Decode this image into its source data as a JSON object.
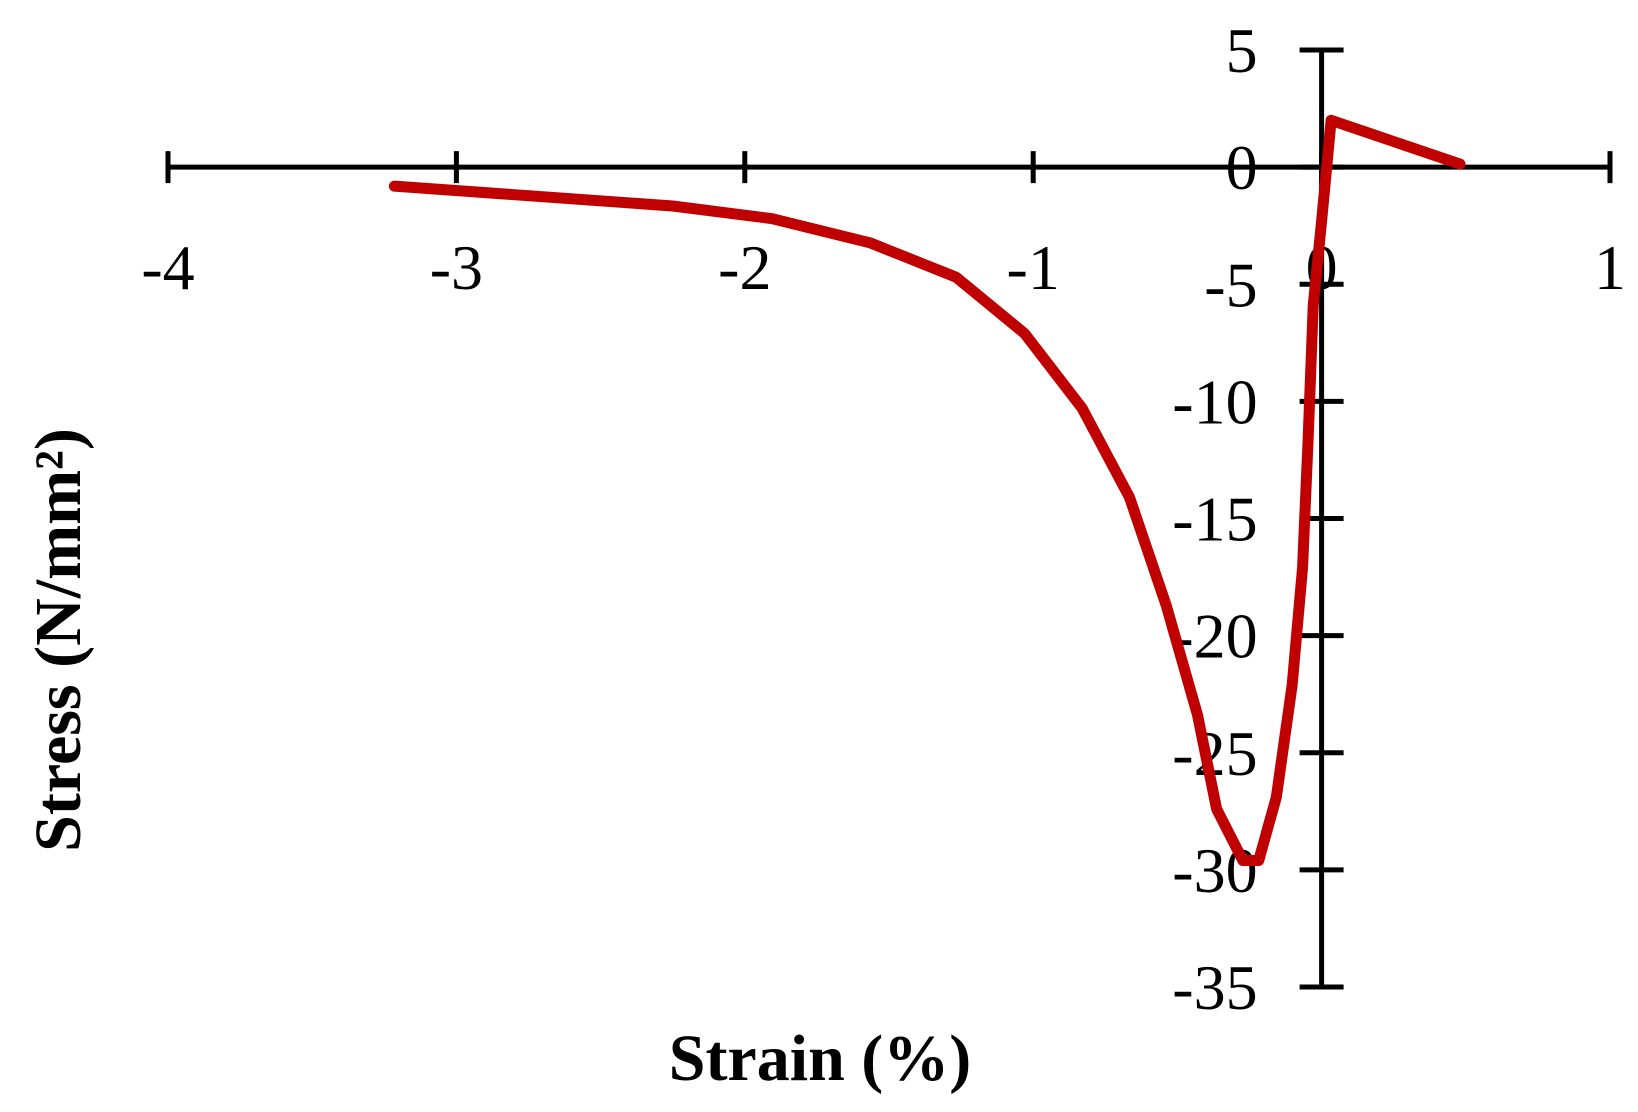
{
  "chart_data": {
    "type": "line",
    "x_label": "Strain (%)",
    "y_label": "Stress (N/mm²)",
    "xlim": [
      -4,
      1
    ],
    "ylim": [
      -35,
      5
    ],
    "xticks": [
      -4,
      -3,
      -2,
      -1,
      0,
      1
    ],
    "yticks": [
      -35,
      -30,
      -25,
      -20,
      -15,
      -10,
      -5,
      0,
      5
    ],
    "series": [
      {
        "color": "#c00000",
        "x": [
          -3.215,
          -2.25,
          -1.905,
          -1.566,
          -1.267,
          -1.03,
          -0.83,
          -0.666,
          -0.539,
          -0.43,
          -0.364,
          -0.273,
          -0.218,
          -0.157,
          -0.102,
          -0.066,
          -0.047,
          -0.029,
          0,
          0.033,
          0.48
        ],
        "values": [
          -0.81,
          -1.66,
          -2.2,
          -3.23,
          -4.7,
          -7.1,
          -10.3,
          -14.1,
          -18.7,
          -23.4,
          -27.4,
          -29.6,
          -29.6,
          -26.9,
          -22.1,
          -17.1,
          -11.7,
          -5.9,
          -2.3,
          2.0,
          0.13
        ]
      }
    ]
  }
}
